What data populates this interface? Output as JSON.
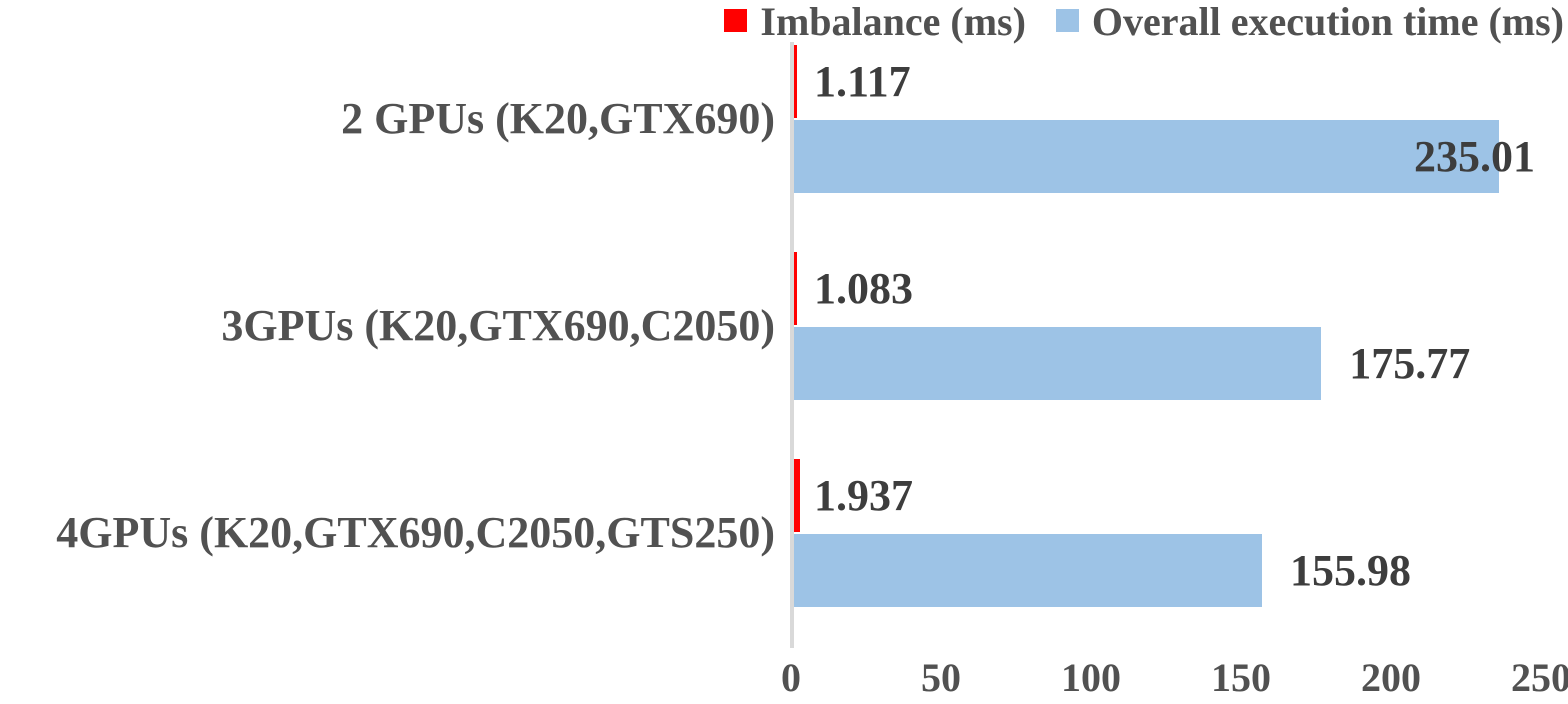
{
  "chart_data": {
    "type": "bar",
    "orientation": "horizontal",
    "title": "",
    "categories": [
      "2 GPUs (K20,GTX690)",
      "3GPUs (K20,GTX690,C2050)",
      "4GPUs (K20,GTX690,C2050,GTS250)"
    ],
    "series": [
      {
        "name": "Imbalance (ms)",
        "color": "#FF0000",
        "values": [
          1.117,
          1.083,
          1.937
        ],
        "labels": [
          "1.117",
          "1.083",
          "1.937"
        ]
      },
      {
        "name": "Overall execution time (ms)",
        "color": "#9DC3E6",
        "values": [
          235.01,
          175.77,
          155.98
        ],
        "labels": [
          "235.01",
          "175.77",
          "155.98"
        ]
      }
    ],
    "x_ticks": [
      "0",
      "50",
      "100",
      "150",
      "200",
      "250"
    ],
    "x_tick_values": [
      0,
      50,
      100,
      150,
      200,
      250
    ],
    "xlim": [
      0,
      250
    ],
    "xlabel": "",
    "ylabel": "",
    "legend_position": "top-right",
    "grid": false,
    "axis_color": "#D9D9D9",
    "value_label_color": "#3D3D3D",
    "text_color": "#515151",
    "background_color": "#FFFFFF"
  }
}
